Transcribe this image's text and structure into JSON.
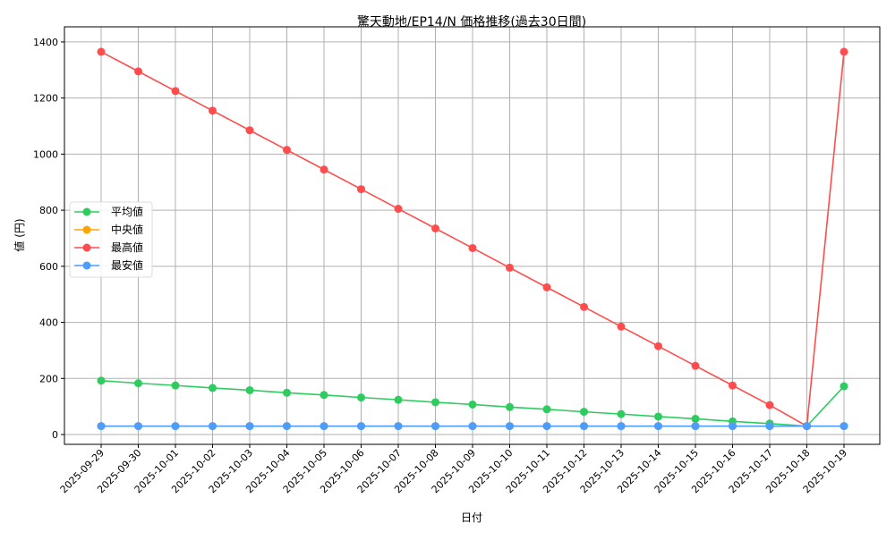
{
  "chart_data": {
    "type": "line",
    "title": "驚天動地/EP14/N 価格推移(過去30日間)",
    "xlabel": "日付",
    "ylabel": "値 (円)",
    "x": [
      "2025-09-29",
      "2025-09-30",
      "2025-10-01",
      "2025-10-02",
      "2025-10-03",
      "2025-10-04",
      "2025-10-05",
      "2025-10-06",
      "2025-10-07",
      "2025-10-08",
      "2025-10-09",
      "2025-10-10",
      "2025-10-11",
      "2025-10-12",
      "2025-10-13",
      "2025-10-14",
      "2025-10-15",
      "2025-10-16",
      "2025-10-17",
      "2025-10-18",
      "2025-10-19"
    ],
    "yticks": [
      0,
      200,
      400,
      600,
      800,
      1000,
      1200,
      1400
    ],
    "ylim": [
      -35,
      1454
    ],
    "grid": true,
    "legend_placement": "center-left",
    "series": [
      {
        "name": "平均値",
        "color": "#2ecc5f",
        "values": [
          192,
          183,
          175,
          166,
          158,
          149,
          141,
          132,
          124,
          115,
          107,
          98,
          90,
          81,
          73,
          64,
          56,
          47,
          39,
          30,
          172
        ]
      },
      {
        "name": "中央値",
        "color": "#ffa500",
        "values": [
          30,
          30,
          30,
          30,
          30,
          30,
          30,
          30,
          30,
          30,
          30,
          30,
          30,
          30,
          30,
          30,
          30,
          30,
          30,
          30,
          30
        ]
      },
      {
        "name": "最高値",
        "color": "#ff4d4d",
        "values": [
          1365,
          1295,
          1225,
          1155,
          1085,
          1015,
          945,
          875,
          805,
          735,
          665,
          595,
          525,
          455,
          385,
          315,
          245,
          175,
          105,
          30,
          1365
        ]
      },
      {
        "name": "最安値",
        "color": "#4d9dff",
        "values": [
          30,
          30,
          30,
          30,
          30,
          30,
          30,
          30,
          30,
          30,
          30,
          30,
          30,
          30,
          30,
          30,
          30,
          30,
          30,
          30,
          30
        ]
      }
    ]
  }
}
